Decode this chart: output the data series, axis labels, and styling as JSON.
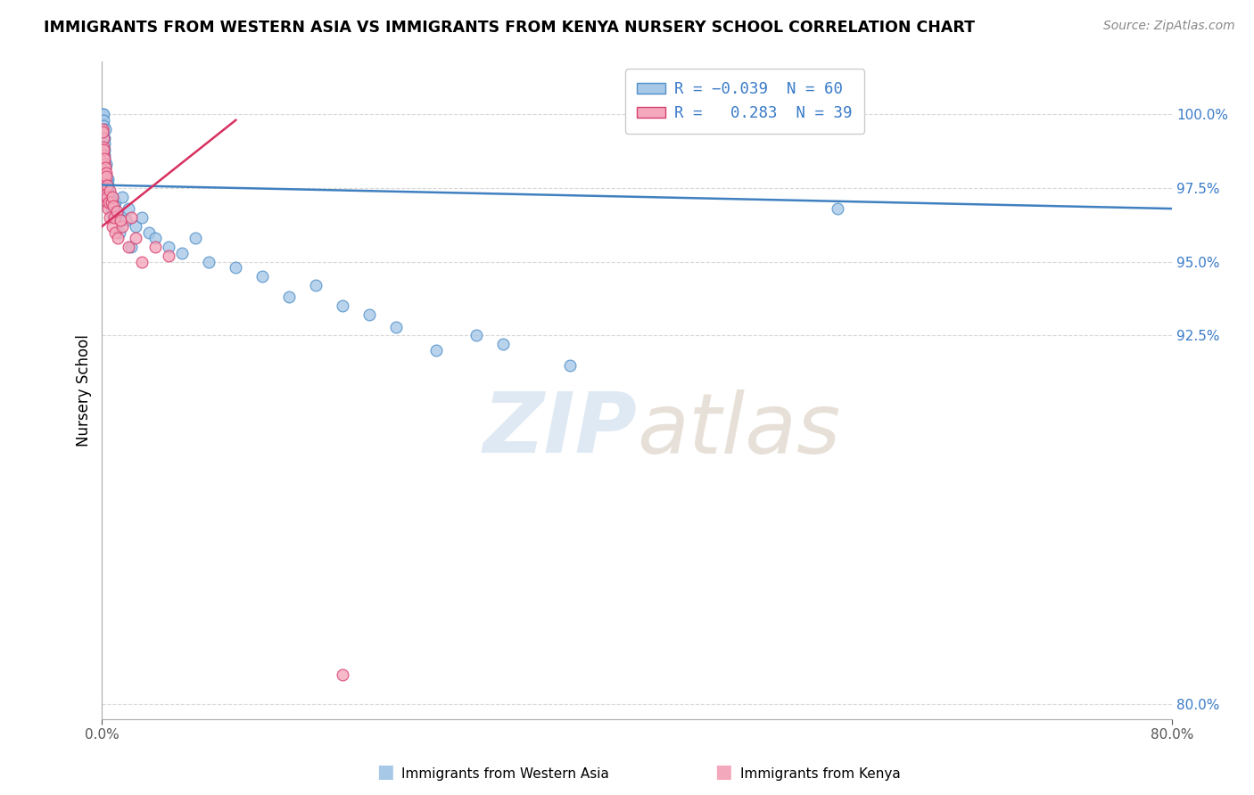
{
  "title": "IMMIGRANTS FROM WESTERN ASIA VS IMMIGRANTS FROM KENYA NURSERY SCHOOL CORRELATION CHART",
  "source": "Source: ZipAtlas.com",
  "ylabel": "Nursery School",
  "y_ticks": [
    80.0,
    92.5,
    95.0,
    97.5,
    100.0
  ],
  "x_lim": [
    0.0,
    80.0
  ],
  "y_lim": [
    79.5,
    101.8
  ],
  "blue_label": "Immigrants from Western Asia",
  "pink_label": "Immigrants from Kenya",
  "blue_R": -0.039,
  "blue_N": 60,
  "pink_R": 0.283,
  "pink_N": 39,
  "blue_color": "#a8c8e8",
  "pink_color": "#f4a8bc",
  "blue_edge_color": "#5090c8",
  "pink_edge_color": "#d84070",
  "blue_line_color": "#4080c0",
  "pink_line_color": "#d83060",
  "grid_color": "#d8d8d8",
  "blue_scatter_x": [
    0.05,
    0.08,
    0.1,
    0.12,
    0.15,
    0.15,
    0.18,
    0.2,
    0.22,
    0.25,
    0.28,
    0.3,
    0.3,
    0.32,
    0.35,
    0.38,
    0.4,
    0.42,
    0.45,
    0.5,
    0.55,
    0.6,
    0.65,
    0.7,
    0.8,
    0.9,
    1.0,
    1.2,
    1.5,
    1.8,
    2.0,
    2.5,
    3.0,
    3.5,
    4.0,
    5.0,
    6.0,
    7.0,
    8.0,
    10.0,
    12.0,
    14.0,
    16.0,
    18.0,
    20.0,
    22.0,
    25.0,
    28.0,
    30.0,
    35.0,
    0.06,
    0.09,
    0.14,
    0.24,
    0.36,
    0.48,
    0.75,
    1.3,
    2.2,
    55.0
  ],
  "blue_scatter_y": [
    100.0,
    100.0,
    99.8,
    99.6,
    99.2,
    98.8,
    99.0,
    98.5,
    99.5,
    98.2,
    97.9,
    97.8,
    98.3,
    97.6,
    97.4,
    97.5,
    97.2,
    97.8,
    97.6,
    97.2,
    97.0,
    97.3,
    97.0,
    96.8,
    97.2,
    96.9,
    97.0,
    96.6,
    97.2,
    96.4,
    96.8,
    96.2,
    96.5,
    96.0,
    95.8,
    95.5,
    95.3,
    95.8,
    95.0,
    94.8,
    94.5,
    93.8,
    94.2,
    93.5,
    93.2,
    92.8,
    92.0,
    92.5,
    92.2,
    91.5,
    99.4,
    99.2,
    98.6,
    98.0,
    97.7,
    97.1,
    96.6,
    96.0,
    95.5,
    96.8
  ],
  "pink_scatter_x": [
    0.05,
    0.08,
    0.1,
    0.12,
    0.15,
    0.18,
    0.2,
    0.25,
    0.3,
    0.35,
    0.4,
    0.45,
    0.5,
    0.6,
    0.7,
    0.8,
    0.9,
    1.0,
    1.2,
    1.5,
    2.0,
    2.5,
    3.0,
    4.0,
    5.0,
    0.07,
    0.11,
    0.14,
    0.22,
    0.28,
    0.32,
    0.38,
    0.55,
    0.75,
    0.85,
    1.1,
    1.4,
    2.2,
    18.0
  ],
  "pink_scatter_y": [
    99.5,
    99.2,
    98.9,
    98.6,
    98.3,
    98.0,
    97.8,
    97.5,
    97.3,
    97.0,
    97.2,
    96.8,
    97.0,
    96.5,
    97.0,
    96.2,
    96.5,
    96.0,
    95.8,
    96.2,
    95.5,
    95.8,
    95.0,
    95.5,
    95.2,
    99.4,
    98.8,
    98.5,
    98.2,
    98.0,
    97.9,
    97.6,
    97.4,
    97.2,
    96.9,
    96.7,
    96.4,
    96.5,
    81.0
  ],
  "blue_trend_x0": 0.0,
  "blue_trend_y0": 97.6,
  "blue_trend_x1": 80.0,
  "blue_trend_y1": 96.8,
  "pink_trend_x0": 0.0,
  "pink_trend_y0": 96.5,
  "pink_trend_x1": 10.0,
  "pink_trend_y1": 99.5
}
